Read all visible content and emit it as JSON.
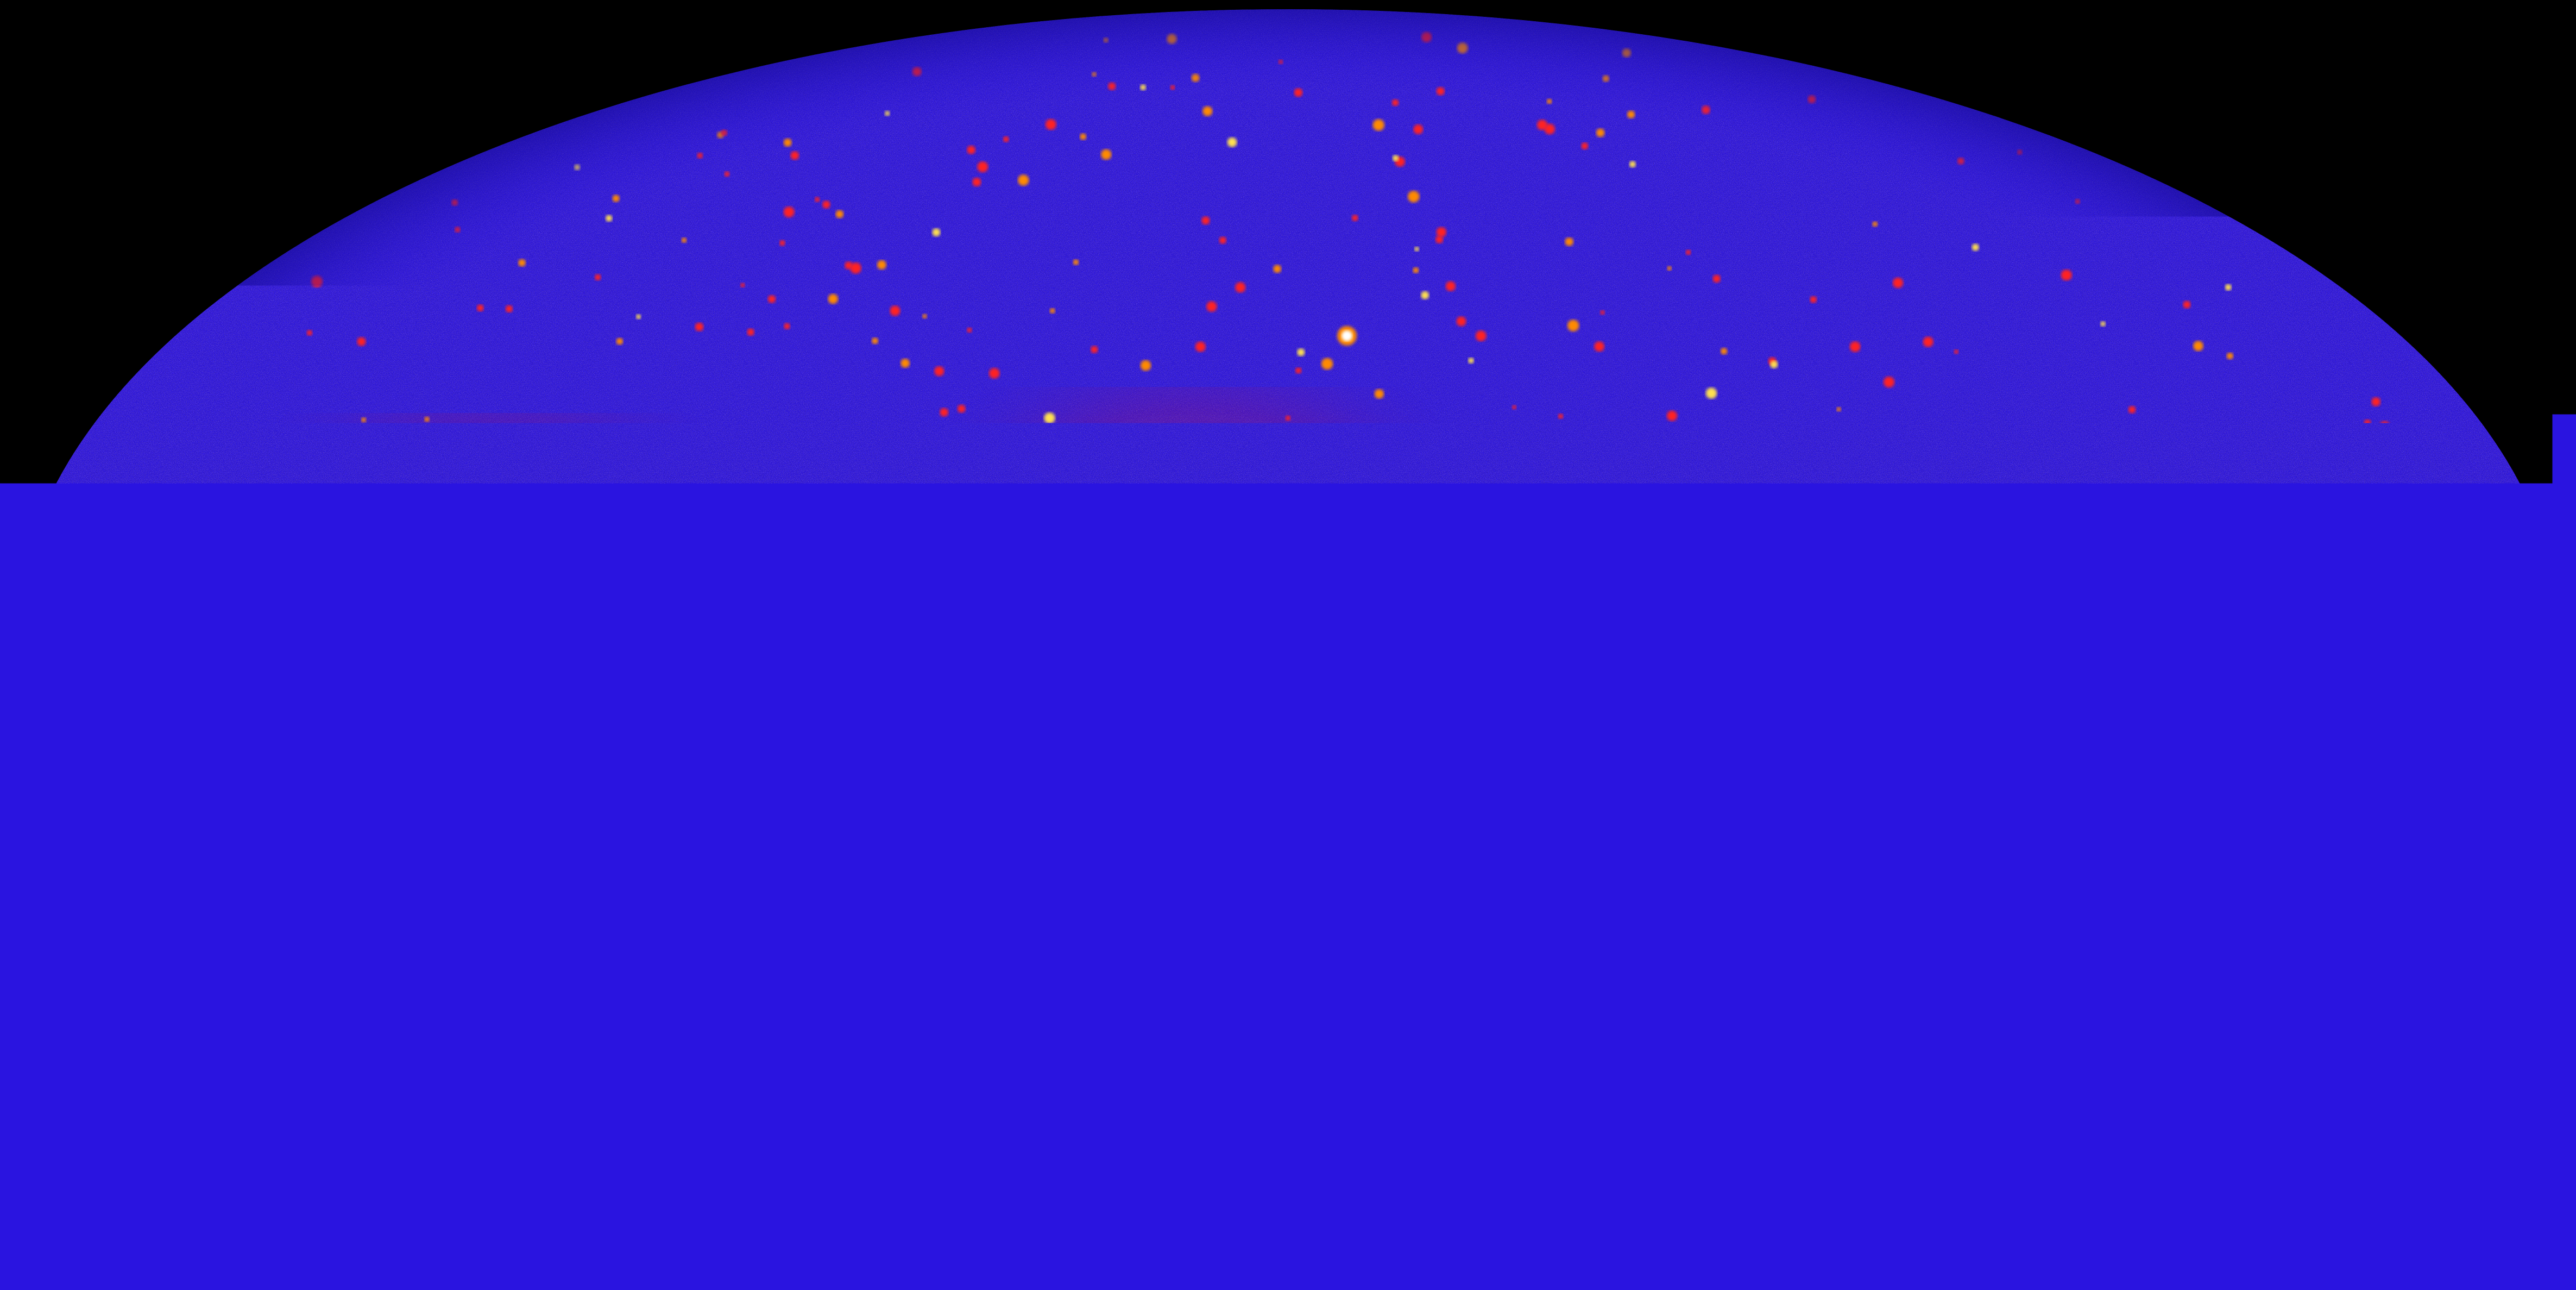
{
  "image": {
    "subject": "all-sky-gamma-ray-map",
    "projection": "mollweide-ellipse",
    "background_color": "#000000",
    "sky_base_color": "#2a14e0",
    "sky_noise_colors": [
      "#0a0660",
      "#1c10b8",
      "#3a22ff",
      "#6030ff"
    ],
    "galactic_plane_colors": {
      "outer": "#ff1010",
      "mid": "#ff5a00",
      "core": "#ffe040",
      "hot": "#fffbe0"
    },
    "point_source_colors": [
      "#ff2020",
      "#ff8a00",
      "#ffe050",
      "#ffffff"
    ]
  }
}
